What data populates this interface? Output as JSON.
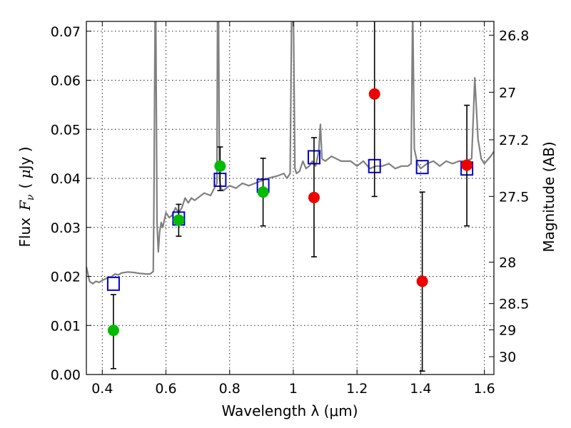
{
  "chart_data": {
    "type": "scatter",
    "xlabel": "Wavelength  λ (μm)",
    "ylabel": "Flux  F_ν  ( μJy )",
    "ylabel_parts": {
      "prefix": "Flux",
      "symbol": "F",
      "subscript": "ν",
      "unit_open": "( ",
      "unit_mu": "μ",
      "unit_rest": "Jy )"
    },
    "ylabel_right": "Magnitude (AB)",
    "xlim": [
      0.35,
      1.63
    ],
    "ylim": [
      0.0,
      0.072
    ],
    "xticks": [
      {
        "value": 0.4,
        "label": "0.4"
      },
      {
        "value": 0.6,
        "label": "0.6"
      },
      {
        "value": 0.8,
        "label": "0.8"
      },
      {
        "value": 1.0,
        "label": "1"
      },
      {
        "value": 1.2,
        "label": "1.2"
      },
      {
        "value": 1.4,
        "label": "1.4"
      },
      {
        "value": 1.6,
        "label": "1.6"
      }
    ],
    "yticks": [
      {
        "value": 0.0,
        "label": "0.00"
      },
      {
        "value": 0.01,
        "label": "0.01"
      },
      {
        "value": 0.02,
        "label": "0.02"
      },
      {
        "value": 0.03,
        "label": "0.03"
      },
      {
        "value": 0.04,
        "label": "0.04"
      },
      {
        "value": 0.05,
        "label": "0.05"
      },
      {
        "value": 0.06,
        "label": "0.06"
      },
      {
        "value": 0.07,
        "label": "0.07"
      }
    ],
    "right_ticks": [
      {
        "value": 26.8,
        "label": "26.8"
      },
      {
        "value": 27,
        "label": "27"
      },
      {
        "value": 27.2,
        "label": "27.2"
      },
      {
        "value": 27.5,
        "label": "27.5"
      },
      {
        "value": 28,
        "label": "28"
      },
      {
        "value": 28.5,
        "label": "28.5"
      },
      {
        "value": 29,
        "label": "29"
      },
      {
        "value": 30,
        "label": "30"
      }
    ],
    "grid": true,
    "series": [
      {
        "kind": "line",
        "color": "#808080",
        "x": [
          0.35,
          0.36,
          0.37,
          0.38,
          0.39,
          0.4,
          0.41,
          0.42,
          0.43,
          0.44,
          0.45,
          0.46,
          0.48,
          0.5,
          0.52,
          0.54,
          0.55,
          0.56,
          0.562,
          0.566,
          0.568,
          0.572,
          0.576,
          0.58,
          0.585,
          0.59,
          0.6,
          0.61,
          0.62,
          0.63,
          0.64,
          0.65,
          0.66,
          0.67,
          0.68,
          0.69,
          0.7,
          0.72,
          0.74,
          0.76,
          0.762,
          0.765,
          0.768,
          0.772,
          0.78,
          0.8,
          0.82,
          0.84,
          0.86,
          0.88,
          0.9,
          0.92,
          0.95,
          0.97,
          0.98,
          0.99,
          0.995,
          1.0,
          1.005,
          1.01,
          1.02,
          1.03,
          1.04,
          1.05,
          1.06,
          1.07,
          1.08,
          1.085,
          1.09,
          1.1,
          1.12,
          1.15,
          1.18,
          1.2,
          1.22,
          1.24,
          1.26,
          1.28,
          1.3,
          1.32,
          1.34,
          1.36,
          1.37,
          1.375,
          1.38,
          1.39,
          1.4,
          1.42,
          1.44,
          1.46,
          1.48,
          1.5,
          1.52,
          1.54,
          1.56,
          1.565,
          1.57,
          1.58,
          1.59,
          1.6,
          1.62,
          1.63
        ],
        "y": [
          0.022,
          0.019,
          0.0185,
          0.019,
          0.0188,
          0.0192,
          0.0195,
          0.0198,
          0.02,
          0.0205,
          0.0203,
          0.0207,
          0.0209,
          0.0208,
          0.0206,
          0.0205,
          0.0205,
          0.021,
          0.034,
          0.075,
          0.075,
          0.031,
          0.025,
          0.029,
          0.031,
          0.03,
          0.033,
          0.032,
          0.0325,
          0.034,
          0.033,
          0.034,
          0.036,
          0.035,
          0.036,
          0.0355,
          0.036,
          0.037,
          0.0365,
          0.039,
          0.075,
          0.075,
          0.04,
          0.038,
          0.0375,
          0.0385,
          0.038,
          0.039,
          0.0385,
          0.039,
          0.0395,
          0.04,
          0.0405,
          0.041,
          0.04,
          0.041,
          0.075,
          0.075,
          0.042,
          0.041,
          0.0415,
          0.0435,
          0.042,
          0.0425,
          0.0435,
          0.0425,
          0.0455,
          0.051,
          0.044,
          0.0435,
          0.0445,
          0.0435,
          0.0435,
          0.0425,
          0.0435,
          0.042,
          0.0425,
          0.0425,
          0.043,
          0.042,
          0.0425,
          0.0425,
          0.043,
          0.075,
          0.046,
          0.043,
          0.042,
          0.043,
          0.0435,
          0.0425,
          0.0435,
          0.043,
          0.0435,
          0.0435,
          0.044,
          0.052,
          0.0605,
          0.048,
          0.044,
          0.043,
          0.0445,
          0.0455
        ]
      },
      {
        "kind": "markers",
        "marker": "square-open",
        "color": "#0000cc",
        "x": [
          0.435,
          0.64,
          0.77,
          0.905,
          1.065,
          1.255,
          1.405,
          1.545
        ],
        "y": [
          0.0185,
          0.0318,
          0.0397,
          0.0385,
          0.0443,
          0.0425,
          0.0423,
          0.042
        ]
      },
      {
        "kind": "markers",
        "marker": "circle",
        "color": "#00bb00",
        "x": [
          0.435,
          0.64,
          0.77,
          0.905
        ],
        "y": [
          0.009,
          0.0315,
          0.0425,
          0.0372
        ],
        "yerr_low": [
          0.0078,
          0.0033,
          0.005,
          0.0069
        ],
        "yerr_high": [
          0.0073,
          0.0032,
          0.0039,
          0.0069
        ]
      },
      {
        "kind": "markers",
        "marker": "circle",
        "color": "#ee0000",
        "x": [
          1.065,
          1.255,
          1.405,
          1.545
        ],
        "y": [
          0.0361,
          0.0572,
          0.019,
          0.0427
        ],
        "yerr_low": [
          0.0121,
          0.0209,
          0.0183,
          0.0124
        ],
        "yerr_high": [
          0.0122,
          0.0148,
          0.0182,
          0.0122
        ]
      }
    ]
  }
}
